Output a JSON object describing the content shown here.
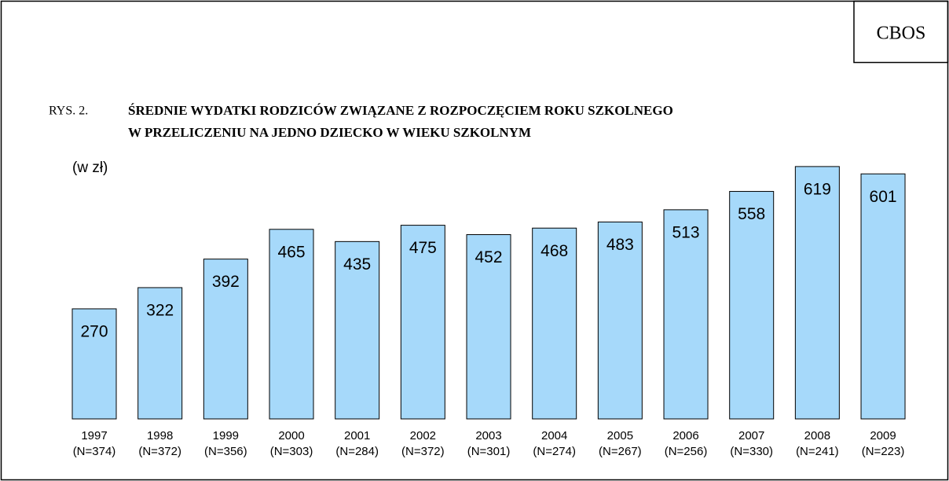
{
  "brand": "CBOS",
  "chart_data": {
    "type": "bar",
    "figure_label": "RYS. 2.",
    "title": [
      "ŚREDNIE WYDATKI RODZICÓW ZWIĄZANE Z ROZPOCZĘCIEM ROKU SZKOLNEGO",
      "W PRZELICZENIU NA JEDNO DZIECKO W WIEKU SZKOLNYM"
    ],
    "unit_label": "(w zł)",
    "categories": [
      "1997",
      "1998",
      "1999",
      "2000",
      "2001",
      "2002",
      "2003",
      "2004",
      "2005",
      "2006",
      "2007",
      "2008",
      "2009"
    ],
    "sample_sizes": [
      "(N=374)",
      "(N=372)",
      "(N=356)",
      "(N=303)",
      "(N=284)",
      "(N=372)",
      "(N=301)",
      "(N=274)",
      "(N=267)",
      "(N=256)",
      "(N=330)",
      "(N=241)",
      "(N=223)"
    ],
    "values": [
      270,
      322,
      392,
      465,
      435,
      475,
      452,
      468,
      483,
      513,
      558,
      619,
      601
    ],
    "color": "#a6d9fa",
    "ylim": [
      0,
      640
    ]
  }
}
